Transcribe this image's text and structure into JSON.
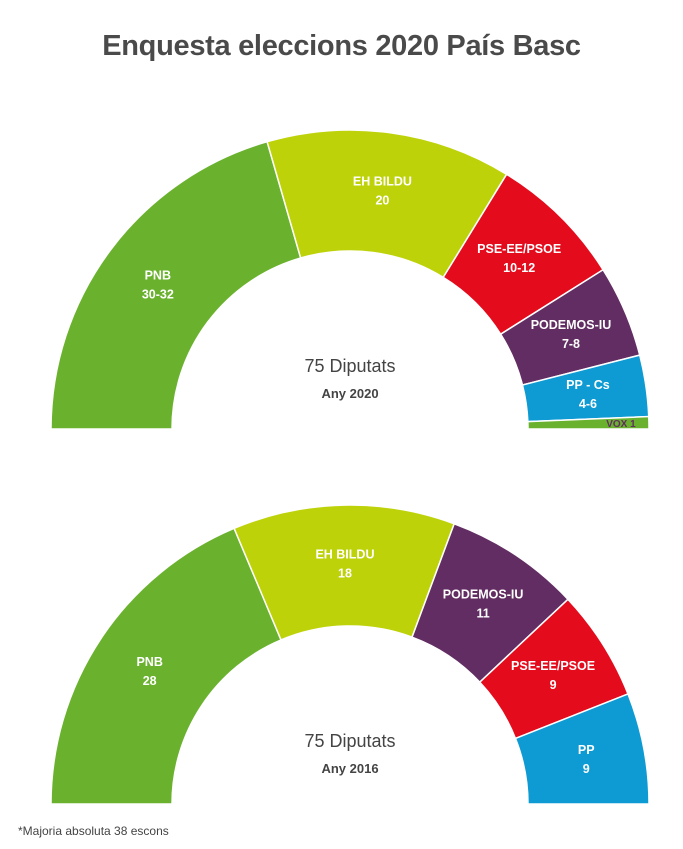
{
  "title": "Enquesta eleccions 2020 País Basc",
  "footnote": "*Majoria absoluta 38 escons",
  "chart_data": [
    {
      "type": "pie",
      "shape": "semicircle",
      "total_label": "75 Diputats",
      "year_label": "Any 2020",
      "series": [
        {
          "name": "PNB",
          "value_label": "30-32",
          "value": 31,
          "color": "#6ab22e"
        },
        {
          "name": "EH BILDU",
          "value_label": "20",
          "value": 20,
          "color": "#bed20a"
        },
        {
          "name": "PSE-EE/PSOE",
          "value_label": "10-12",
          "value": 11,
          "color": "#e30b1c"
        },
        {
          "name": "PODEMOS-IU",
          "value_label": "7-8",
          "value": 7.5,
          "color": "#622d62"
        },
        {
          "name": "PP - Cs",
          "value_label": "4-6",
          "value": 5,
          "color": "#0e9bd3"
        },
        {
          "name": "VOX",
          "value_label": "1",
          "value": 1,
          "color": "#6ab22e"
        }
      ]
    },
    {
      "type": "pie",
      "shape": "semicircle",
      "total_label": "75 Diputats",
      "year_label": "Any 2016",
      "series": [
        {
          "name": "PNB",
          "value_label": "28",
          "value": 28,
          "color": "#6ab22e"
        },
        {
          "name": "EH BILDU",
          "value_label": "18",
          "value": 18,
          "color": "#bed20a"
        },
        {
          "name": "PODEMOS-IU",
          "value_label": "11",
          "value": 11,
          "color": "#622d62"
        },
        {
          "name": "PSE-EE/PSOE",
          "value_label": "9",
          "value": 9,
          "color": "#e30b1c"
        },
        {
          "name": "PP",
          "value_label": "9",
          "value": 9,
          "color": "#0e9bd3"
        }
      ]
    }
  ]
}
